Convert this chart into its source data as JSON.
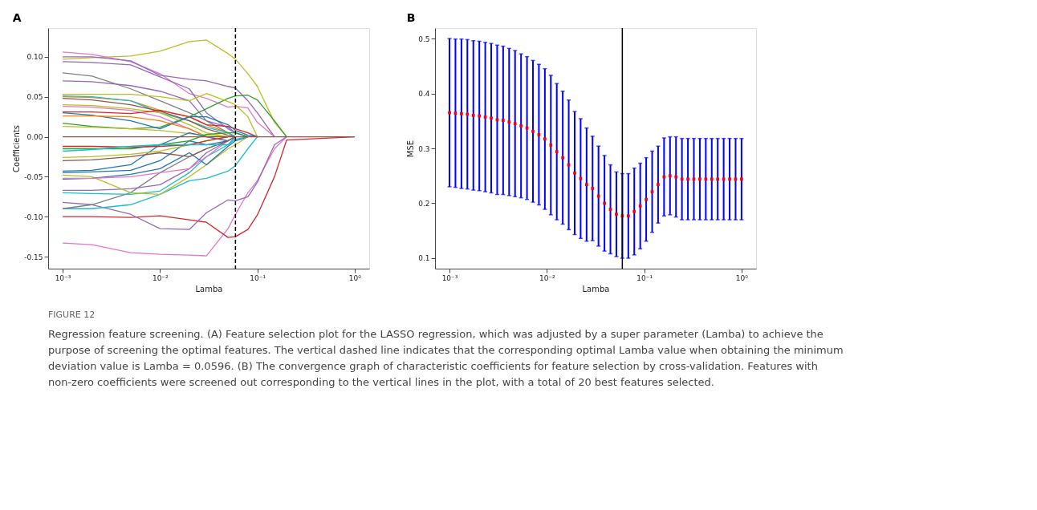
{
  "chart_data": [
    {
      "type": "line",
      "title": "A",
      "xlabel": "Lamba",
      "ylabel": "Coefficients",
      "log": "x",
      "grid": false,
      "marker": "none",
      "line_style": "solid",
      "xlim": [
        0.00071,
        1.41
      ],
      "ylim": [
        -0.165,
        0.136
      ],
      "xticks": [
        {
          "value": 0.001,
          "label": "10⁻³"
        },
        {
          "value": 0.01,
          "label": "10⁻²"
        },
        {
          "value": 0.1,
          "label": "10⁻¹"
        },
        {
          "value": 1,
          "label": "10⁰"
        }
      ],
      "yticks": [
        {
          "value": -0.15,
          "label": "-0.15"
        },
        {
          "value": -0.1,
          "label": "-0.10"
        },
        {
          "value": -0.05,
          "label": "-0.05"
        },
        {
          "value": 0,
          "label": "0.00"
        },
        {
          "value": 0.05,
          "label": "0.05"
        },
        {
          "value": 0.1,
          "label": "0.10"
        }
      ],
      "ref_lines": [
        {
          "axis": "x",
          "value": 0.0596,
          "color": "#000000",
          "line_style": "dashed"
        }
      ],
      "annotations": [
        "FIGURE 12",
        "Regression feature screening. (A) Feature selection plot for the LASSO regression, which was adjusted by a super parameter (Lamba) to achieve the purpose of screening the optimal features. The vertical dashed line indicates that the corresponding optimal Lamba value when obtaining the minimum deviation value is Lamba = 0.0596. (B) The convergence graph of characteristic coefficients for feature selection by cross-validation. Features with non-zero coefficients were screened out corresponding to the vertical lines in the plot, with a total of 20 best features selected."
      ],
      "x": [
        0.001,
        0.002,
        0.005,
        0.01,
        0.02,
        0.03,
        0.05,
        0.0596,
        0.08,
        0.1,
        0.15,
        0.2,
        1
      ],
      "series": [
        {
          "color": "#bcbd22",
          "values": [
            0.097,
            0.099,
            0.101,
            0.107,
            0.119,
            0.121,
            0.104,
            0.097,
            0.079,
            0.063,
            0.018,
            0,
            null
          ]
        },
        {
          "color": "#e377c2",
          "values": [
            0.106,
            0.103,
            0.094,
            0.079,
            0.054,
            0.048,
            0.037,
            0.038,
            0.036,
            0.018,
            0,
            null,
            null
          ]
        },
        {
          "color": "#9467bd",
          "values": [
            0.1,
            0.1,
            0.095,
            0.077,
            0.072,
            0.07,
            0.063,
            0.061,
            0.045,
            0.03,
            0,
            null,
            null
          ]
        },
        {
          "color": "#9467bd",
          "values": [
            0.094,
            0.093,
            0.09,
            0.075,
            0.06,
            0.03,
            0.01,
            0.005,
            0,
            null,
            null,
            null,
            null
          ]
        },
        {
          "color": "#7f7f7f",
          "values": [
            0.08,
            0.076,
            0.06,
            0.045,
            0.03,
            0.02,
            0.005,
            0,
            null,
            null,
            null,
            null,
            null
          ]
        },
        {
          "color": "#9467bd",
          "values": [
            0.07,
            0.069,
            0.064,
            0.057,
            0.045,
            0.02,
            0.012,
            0.005,
            0,
            null,
            null,
            null,
            null
          ]
        },
        {
          "color": "#2ca02c",
          "values": [
            0.017,
            0.013,
            0.01,
            0.012,
            0.025,
            0.035,
            0.048,
            0.051,
            0.052,
            0.046,
            0.02,
            0,
            null
          ]
        },
        {
          "color": "#bcbd22",
          "values": [
            0.053,
            0.053,
            0.053,
            0.05,
            0.045,
            0.054,
            0.044,
            0.04,
            0.025,
            0,
            null,
            null,
            null
          ]
        },
        {
          "color": "#ff7f0e",
          "values": [
            0.05,
            0.049,
            0.045,
            0.033,
            0.025,
            0.015,
            0.005,
            0,
            null,
            null,
            null,
            null,
            null
          ]
        },
        {
          "color": "#17becf",
          "values": [
            0.051,
            0.05,
            0.045,
            0.03,
            0.02,
            0.012,
            0.005,
            0,
            null,
            null,
            null,
            null,
            null
          ]
        },
        {
          "color": "#8c564b",
          "values": [
            0.048,
            0.046,
            0.04,
            0.032,
            0.02,
            0.01,
            0.002,
            0,
            null,
            null,
            null,
            null,
            null
          ]
        },
        {
          "color": "#bcbd22",
          "values": [
            0.04,
            0.039,
            0.035,
            0.03,
            0.015,
            0.005,
            0,
            null,
            null,
            null,
            null,
            null,
            null
          ]
        },
        {
          "color": "#e377c2",
          "values": [
            0.038,
            0.037,
            0.033,
            0.025,
            0.01,
            0,
            -0.005,
            0,
            null,
            null,
            null,
            null,
            null
          ]
        },
        {
          "color": "#d62728",
          "values": [
            0.031,
            0.031,
            0.029,
            0.033,
            0.025,
            0.015,
            0.013,
            0.01,
            0.005,
            0,
            null,
            null,
            null
          ]
        },
        {
          "color": "#1f77b4",
          "values": [
            0.03,
            0.027,
            0.02,
            0.01,
            0.025,
            0.025,
            0.015,
            0.008,
            0.002,
            0,
            null,
            null,
            null
          ]
        },
        {
          "color": "#ff7f0e",
          "values": [
            0.026,
            0.026,
            0.025,
            0.02,
            0.01,
            0,
            null,
            null,
            null,
            null,
            null,
            null,
            null
          ]
        },
        {
          "color": "#bcbd22",
          "values": [
            0.013,
            0.012,
            0.01,
            0.008,
            0.004,
            0.002,
            0,
            null,
            null,
            null,
            null,
            null,
            null
          ]
        },
        {
          "color": "#e377c2",
          "values": [
            -0.133,
            -0.135,
            -0.145,
            -0.147,
            -0.148,
            -0.149,
            -0.115,
            -0.097,
            -0.07,
            -0.055,
            -0.015,
            0,
            null
          ]
        },
        {
          "color": "#d62728",
          "values": [
            -0.1,
            -0.1,
            -0.101,
            -0.099,
            -0.104,
            -0.107,
            -0.126,
            -0.125,
            -0.116,
            -0.098,
            -0.05,
            -0.004,
            0
          ]
        },
        {
          "color": "#9467bd",
          "values": [
            -0.082,
            -0.085,
            -0.097,
            -0.115,
            -0.116,
            -0.095,
            -0.079,
            -0.08,
            -0.075,
            -0.057,
            -0.01,
            0,
            null
          ]
        },
        {
          "color": "#17becf",
          "values": [
            -0.09,
            -0.09,
            -0.085,
            -0.072,
            -0.055,
            -0.052,
            -0.043,
            -0.036,
            -0.015,
            0,
            null,
            null,
            null
          ]
        },
        {
          "color": "#7f7f7f",
          "values": [
            -0.09,
            -0.085,
            -0.07,
            -0.045,
            -0.025,
            -0.015,
            -0.005,
            0,
            null,
            null,
            null,
            null,
            null
          ]
        },
        {
          "color": "#17becf",
          "values": [
            -0.07,
            -0.071,
            -0.072,
            -0.068,
            -0.045,
            -0.025,
            -0.01,
            0,
            null,
            null,
            null,
            null,
            null
          ]
        },
        {
          "color": "#9467bd",
          "values": [
            -0.067,
            -0.067,
            -0.065,
            -0.06,
            -0.04,
            -0.02,
            -0.005,
            0,
            null,
            null,
            null,
            null,
            null
          ]
        },
        {
          "color": "#bcbd22",
          "values": [
            -0.048,
            -0.05,
            -0.07,
            -0.072,
            -0.05,
            -0.035,
            -0.015,
            -0.01,
            0,
            null,
            null,
            null,
            null
          ]
        },
        {
          "color": "#1f77b4",
          "values": [
            -0.043,
            -0.042,
            -0.035,
            -0.01,
            0.005,
            0,
            -0.005,
            0,
            null,
            null,
            null,
            null,
            null
          ]
        },
        {
          "color": "#1f77b4",
          "values": [
            -0.045,
            -0.044,
            -0.042,
            -0.03,
            -0.005,
            -0.01,
            -0.005,
            0,
            null,
            null,
            null,
            null,
            null
          ]
        },
        {
          "color": "#1f77b4",
          "values": [
            -0.053,
            -0.052,
            -0.047,
            -0.04,
            -0.02,
            -0.035,
            -0.012,
            -0.005,
            0,
            null,
            null,
            null,
            null
          ]
        },
        {
          "color": "#e377c2",
          "values": [
            -0.052,
            -0.052,
            -0.05,
            -0.045,
            -0.04,
            -0.025,
            -0.005,
            0,
            null,
            null,
            null,
            null,
            null
          ]
        },
        {
          "color": "#8c564b",
          "values": [
            -0.03,
            -0.029,
            -0.025,
            -0.02,
            -0.025,
            -0.015,
            -0.005,
            0,
            null,
            null,
            null,
            null,
            null
          ]
        },
        {
          "color": "#bcbd22",
          "values": [
            -0.026,
            -0.025,
            -0.022,
            -0.018,
            -0.01,
            -0.005,
            0,
            null,
            null,
            null,
            null,
            null,
            null
          ]
        },
        {
          "color": "#2ca02c",
          "values": [
            -0.015,
            -0.015,
            -0.015,
            -0.01,
            -0.005,
            0.003,
            0.005,
            0.005,
            0,
            null,
            null,
            null,
            null
          ]
        },
        {
          "color": "#d62728",
          "values": [
            -0.012,
            -0.012,
            -0.013,
            -0.012,
            -0.01,
            -0.005,
            0,
            null,
            null,
            null,
            null,
            null,
            null
          ]
        },
        {
          "color": "#17becf",
          "values": [
            -0.018,
            -0.016,
            -0.012,
            -0.01,
            -0.01,
            -0.01,
            -0.01,
            -0.003,
            0,
            null,
            null,
            null,
            null
          ]
        },
        {
          "color": "#8c564b",
          "values": [
            0,
            0,
            0,
            0,
            0,
            0,
            0,
            0,
            0,
            0,
            0,
            0,
            0
          ]
        }
      ]
    },
    {
      "type": "scatter",
      "title": "B",
      "xlabel": "Lamba",
      "ylabel": "MSE",
      "log": "x",
      "grid": false,
      "marker": "square",
      "xlim": [
        0.00071,
        1.41
      ],
      "ylim": [
        0.081,
        0.519
      ],
      "xticks": [
        {
          "value": 0.001,
          "label": "10⁻³"
        },
        {
          "value": 0.01,
          "label": "10⁻²"
        },
        {
          "value": 0.1,
          "label": "10⁻¹"
        },
        {
          "value": 1,
          "label": "10⁰"
        }
      ],
      "yticks": [
        0.1,
        0.2,
        0.3,
        0.4,
        0.5
      ],
      "ref_lines": [
        {
          "axis": "x",
          "value": 0.0596,
          "color": "#000000",
          "line_style": "solid"
        }
      ],
      "x": [
        0.001,
        0.001151,
        0.001326,
        0.001526,
        0.001758,
        0.002024,
        0.00233,
        0.002683,
        0.003089,
        0.003556,
        0.004095,
        0.004715,
        0.005429,
        0.006251,
        0.007197,
        0.008286,
        0.009541,
        0.01099,
        0.01265,
        0.01456,
        0.01677,
        0.01931,
        0.02223,
        0.0256,
        0.02947,
        0.03393,
        0.03907,
        0.04498,
        0.05179,
        0.05964,
        0.06866,
        0.07906,
        0.09103,
        0.1048,
        0.1207,
        0.1389,
        0.16,
        0.1842,
        0.2121,
        0.2442,
        0.2812,
        0.3237,
        0.3728,
        0.4292,
        0.4942,
        0.569,
        0.6551,
        0.7543,
        0.8685,
        1.0
      ],
      "series": [
        {
          "color": "#ff0000",
          "values": [
            0.365,
            0.364,
            0.363,
            0.362,
            0.36,
            0.359,
            0.357,
            0.355,
            0.352,
            0.351,
            0.348,
            0.345,
            0.341,
            0.337,
            0.331,
            0.325,
            0.317,
            0.306,
            0.294,
            0.283,
            0.27,
            0.255,
            0.245,
            0.234,
            0.227,
            0.213,
            0.2,
            0.189,
            0.18,
            0.177,
            0.177,
            0.185,
            0.195,
            0.207,
            0.221,
            0.234,
            0.248,
            0.25,
            0.248,
            0.244,
            0.244,
            0.244,
            0.244,
            0.244,
            0.244,
            0.244,
            0.244,
            0.244,
            0.244,
            0.244
          ],
          "errors": [
            0.135,
            0.135,
            0.136,
            0.136,
            0.136,
            0.136,
            0.136,
            0.136,
            0.136,
            0.135,
            0.134,
            0.133,
            0.131,
            0.13,
            0.129,
            0.128,
            0.128,
            0.127,
            0.124,
            0.121,
            0.118,
            0.112,
            0.109,
            0.103,
            0.095,
            0.091,
            0.087,
            0.081,
            0.077,
            0.077,
            0.077,
            0.079,
            0.078,
            0.076,
            0.074,
            0.07,
            0.071,
            0.071,
            0.073,
            0.074,
            0.074,
            0.074,
            0.074,
            0.074,
            0.074,
            0.074,
            0.074,
            0.074,
            0.074,
            0.074
          ]
        }
      ]
    }
  ]
}
